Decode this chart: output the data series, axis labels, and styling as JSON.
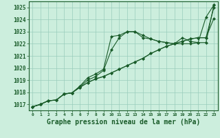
{
  "bg_color": "#cceedd",
  "grid_color": "#99ccbb",
  "line_color": "#1a5c2a",
  "xlabel": "Graphe pression niveau de la mer (hPa)",
  "xlim": [
    -0.5,
    23.5
  ],
  "ylim": [
    1016.5,
    1025.5
  ],
  "yticks": [
    1017,
    1018,
    1019,
    1020,
    1021,
    1022,
    1023,
    1024,
    1025
  ],
  "xticks": [
    0,
    1,
    2,
    3,
    4,
    5,
    6,
    7,
    8,
    9,
    10,
    11,
    12,
    13,
    14,
    15,
    16,
    17,
    18,
    19,
    20,
    21,
    22,
    23
  ],
  "line1_y": [
    1016.8,
    1017.0,
    1017.3,
    1017.35,
    1017.85,
    1017.95,
    1018.5,
    1019.2,
    1019.5,
    1019.9,
    1022.6,
    1022.7,
    1023.0,
    1023.0,
    1022.5,
    1022.4,
    1022.2,
    1022.1,
    1022.0,
    1022.5,
    1022.2,
    1022.1,
    1024.2,
    1025.2
  ],
  "line2_y": [
    1016.8,
    1017.0,
    1017.3,
    1017.35,
    1017.85,
    1017.95,
    1018.45,
    1019.0,
    1019.3,
    1019.8,
    1021.5,
    1022.5,
    1023.0,
    1023.0,
    1022.7,
    1022.4,
    1022.2,
    1022.1,
    1022.0,
    1022.0,
    1022.0,
    1022.1,
    1022.1,
    1025.2
  ],
  "line3_y": [
    1016.8,
    1017.0,
    1017.3,
    1017.35,
    1017.85,
    1017.95,
    1018.4,
    1018.8,
    1019.1,
    1019.3,
    1019.6,
    1019.9,
    1020.2,
    1020.5,
    1020.8,
    1021.2,
    1021.5,
    1021.8,
    1022.0,
    1022.2,
    1022.4,
    1022.5,
    1022.5,
    1025.0
  ],
  "line4_y": [
    1016.8,
    1017.0,
    1017.3,
    1017.35,
    1017.85,
    1017.95,
    1018.4,
    1018.8,
    1019.1,
    1019.3,
    1019.6,
    1019.9,
    1020.2,
    1020.5,
    1020.8,
    1021.2,
    1021.5,
    1021.8,
    1022.0,
    1022.2,
    1022.4,
    1022.5,
    1022.5,
    1024.1
  ]
}
